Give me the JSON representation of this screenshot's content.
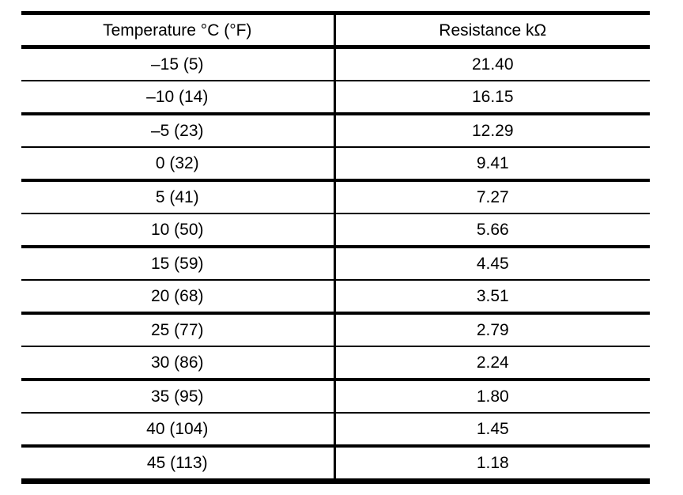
{
  "table": {
    "columns": [
      {
        "label": "Temperature °C (°F)"
      },
      {
        "label": "Resistance kΩ"
      }
    ],
    "rows": [
      {
        "temperature": "–15 (5)",
        "resistance": "21.40"
      },
      {
        "temperature": "–10 (14)",
        "resistance": "16.15"
      },
      {
        "temperature": "–5 (23)",
        "resistance": "12.29"
      },
      {
        "temperature": "0 (32)",
        "resistance": "9.41"
      },
      {
        "temperature": "5 (41)",
        "resistance": "7.27"
      },
      {
        "temperature": "10 (50)",
        "resistance": "5.66"
      },
      {
        "temperature": "15 (59)",
        "resistance": "4.45"
      },
      {
        "temperature": "20 (68)",
        "resistance": "3.51"
      },
      {
        "temperature": "25 (77)",
        "resistance": "2.79"
      },
      {
        "temperature": "30 (86)",
        "resistance": "2.24"
      },
      {
        "temperature": "35 (95)",
        "resistance": "1.80"
      },
      {
        "temperature": "40 (104)",
        "resistance": "1.45"
      },
      {
        "temperature": "45 (113)",
        "resistance": "1.18"
      }
    ],
    "colors": {
      "border": "#000000",
      "text": "#000000",
      "background": "#ffffff"
    }
  }
}
